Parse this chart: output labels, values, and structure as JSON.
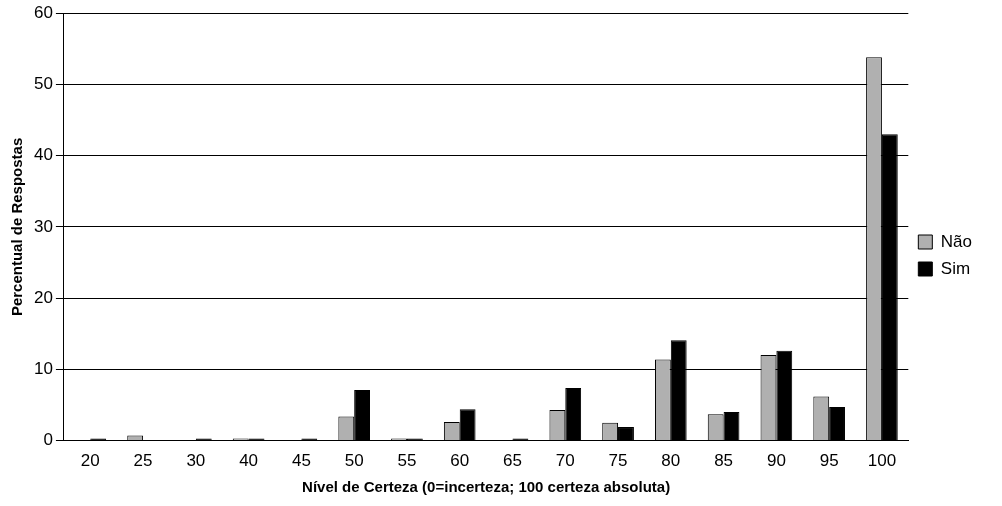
{
  "chart_data": {
    "type": "bar",
    "xlabel": "Nível de Certeza (0=incerteza; 100 certeza absoluta)",
    "ylabel": "Percentual de Respostas",
    "categories": [
      "20",
      "25",
      "30",
      "40",
      "45",
      "50",
      "55",
      "60",
      "65",
      "70",
      "75",
      "80",
      "85",
      "90",
      "95",
      "100"
    ],
    "series": [
      {
        "name": "Não",
        "color": "#b0b0b0",
        "values": [
          0,
          0.7,
          0,
          0.3,
          0,
          3.4,
          0.3,
          2.6,
          0,
          4.3,
          2.5,
          11.4,
          3.7,
          12.0,
          6.2,
          53.8
        ]
      },
      {
        "name": "Sim",
        "color": "#000000",
        "values": [
          0.3,
          0,
          0.3,
          0.3,
          0.3,
          7.1,
          0.3,
          4.4,
          0.3,
          7.4,
          1.9,
          14.1,
          4.0,
          12.6,
          4.7,
          43.0
        ]
      }
    ],
    "ylim": [
      0,
      60
    ],
    "yticks": [
      0,
      10,
      20,
      30,
      40,
      50,
      60
    ],
    "grid": "y",
    "legend": "right"
  }
}
